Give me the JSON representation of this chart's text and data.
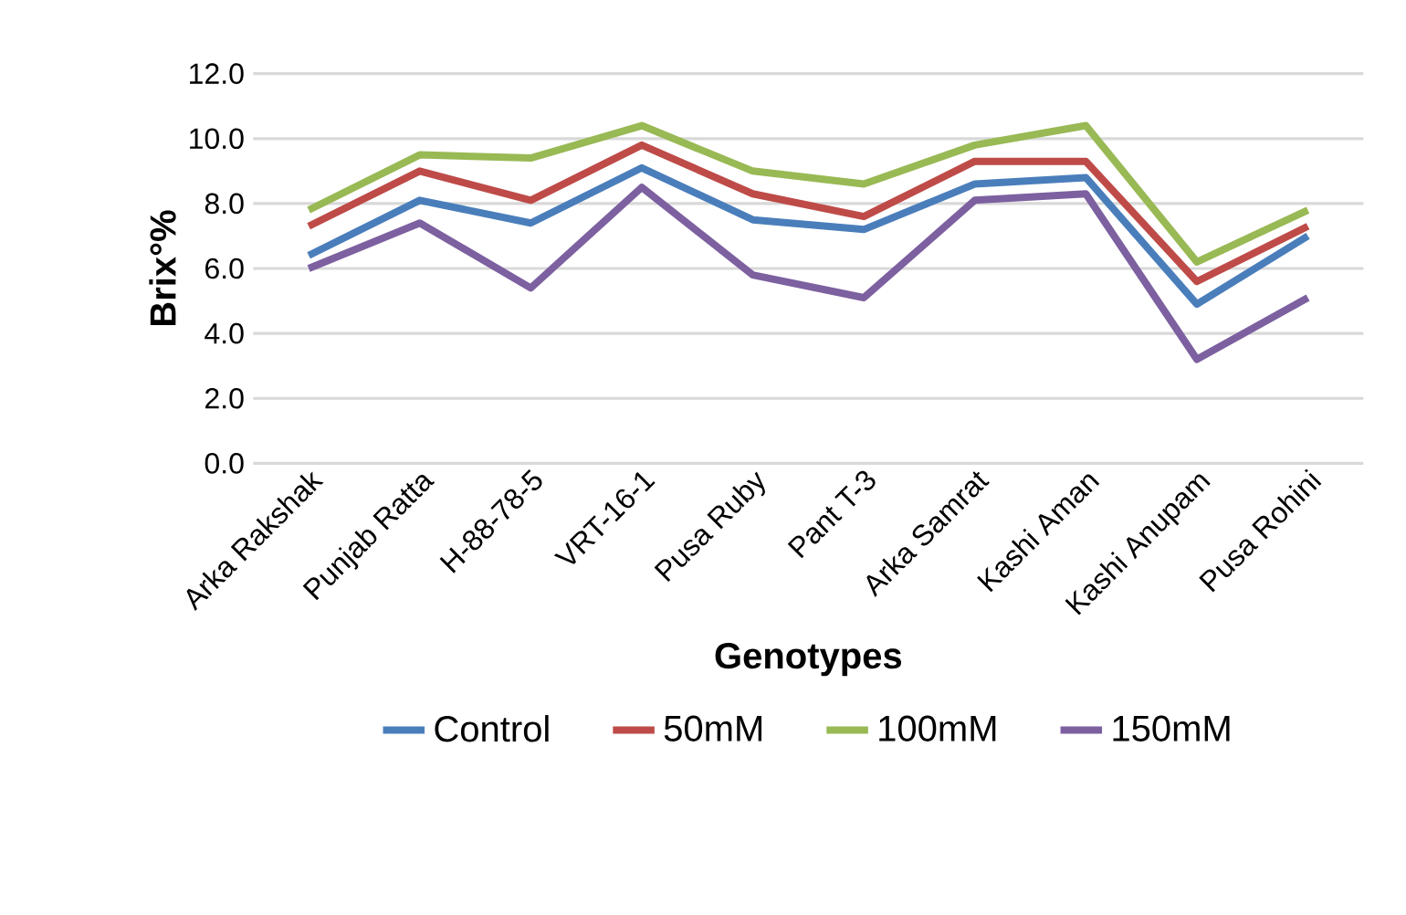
{
  "chart_data": {
    "type": "line",
    "xlabel": "Genotypes",
    "ylabel": "Brix°%",
    "categories": [
      "Arka Rakshak",
      "Punjab Ratta",
      "H-88-78-5",
      "VRT-16-1",
      "Pusa Ruby",
      "Pant T-3",
      "Arka Samrat",
      "Kashi Aman",
      "Kashi Anupam",
      "Pusa Rohini"
    ],
    "series": [
      {
        "name": "Control",
        "color": "#4a7ebb",
        "values": [
          6.4,
          8.1,
          7.4,
          9.1,
          7.5,
          7.2,
          8.6,
          8.8,
          4.9,
          7.0
        ]
      },
      {
        "name": "50mM",
        "color": "#be4b48",
        "values": [
          7.3,
          9.0,
          8.1,
          9.8,
          8.3,
          7.6,
          9.3,
          9.3,
          5.6,
          7.3
        ]
      },
      {
        "name": "100mM",
        "color": "#98b954",
        "values": [
          7.8,
          9.5,
          9.4,
          10.4,
          9.0,
          8.6,
          9.8,
          10.4,
          6.2,
          7.8
        ]
      },
      {
        "name": "150mM",
        "color": "#7d60a0",
        "values": [
          6.0,
          7.4,
          5.4,
          8.5,
          5.8,
          5.1,
          8.1,
          8.3,
          3.2,
          5.1
        ]
      }
    ],
    "ylim": [
      0,
      12
    ],
    "yticks": [
      {
        "value": 0,
        "label": "0.0"
      },
      {
        "value": 2,
        "label": "2.0"
      },
      {
        "value": 4,
        "label": "4.0"
      },
      {
        "value": 6,
        "label": "6.0"
      },
      {
        "value": 8,
        "label": "8.0"
      },
      {
        "value": 10,
        "label": "10.0"
      },
      {
        "value": 12,
        "label": "12.0"
      }
    ],
    "grid": "y",
    "legend": "bottom",
    "marker": "none",
    "line_style": "solid"
  }
}
